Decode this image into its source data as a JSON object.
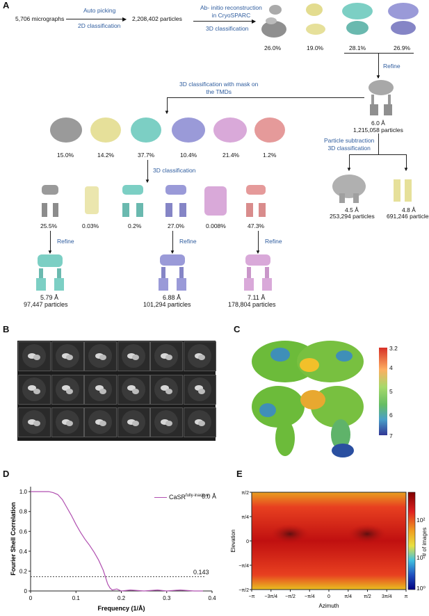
{
  "panels": {
    "a": {
      "label": "A",
      "input": "5,706 micrographs",
      "step1": {
        "top": "Auto picking",
        "bottom": "2D classification"
      },
      "particles": "2,208,402 particles",
      "step2": {
        "top": "Ab- initio reconstruction\nin CryoSPARC",
        "bottom": "3D classification"
      },
      "round1": {
        "percents": [
          "26.0%",
          "19.0%",
          "28.1%",
          "26.9%"
        ],
        "colors": [
          "#9a9a9a",
          "#e6e09a",
          "#7ccfc4",
          "#9a9ad8"
        ]
      },
      "refine": "Refine",
      "map1": {
        "res": "6.0 Å",
        "particles": "1,215,058 particles"
      },
      "mask_step": "3D classification with mask on\nthe TMDs",
      "round2": {
        "percents": [
          "15.0%",
          "14.2%",
          "37.7%",
          "10.4%",
          "21.4%",
          "1.2%"
        ],
        "colors": [
          "#9a9a9a",
          "#e6e09a",
          "#7ccfc4",
          "#9a9ad8",
          "#d9a9d9",
          "#e59a9a"
        ]
      },
      "subtraction": "Particle subtraction\n3D classification",
      "sub_maps": [
        {
          "res": "4.5 Å",
          "particles": "253,294 particles",
          "color": "#b0b0b0"
        },
        {
          "res": "4.8 Å",
          "particles": "691,246 particles",
          "color": "#e6e09a"
        }
      ],
      "class3d": "3D classification",
      "round3": {
        "percents": [
          "25.5%",
          "0.03%",
          "0.2%",
          "27.0%",
          "0.008%",
          "47.3%"
        ],
        "colors": [
          "#9a9a9a",
          "#e6e09a",
          "#7ccfc4",
          "#9a9ad8",
          "#d9a9d9",
          "#e59a9a"
        ]
      },
      "final_refine": "Refine",
      "finals": [
        {
          "res": "5.79 Å",
          "particles": "97,447 particles",
          "color": "#7ccfc4"
        },
        {
          "res": "6.88 Å",
          "particles": "101,294 particles",
          "color": "#9a9ad8"
        },
        {
          "res": "7.11 Å",
          "particles": "178,804 particles",
          "color": "#d9a9d9"
        }
      ]
    },
    "b": {
      "label": "B"
    },
    "c": {
      "label": "C",
      "colorbar_ticks": [
        "3.2",
        "4",
        "5",
        "6",
        "7"
      ]
    },
    "d": {
      "label": "D",
      "legend": "CaSR",
      "legend_sup": "fully-inactive",
      "legend_res": "6.0 Å",
      "threshold_label": "0.143"
    },
    "e": {
      "label": "E",
      "colorbar_title": "# of images",
      "colorbar_ticks": [
        "10²",
        "10¹",
        "10⁰"
      ]
    }
  },
  "chart_data": [
    {
      "type": "line",
      "xlabel": "Frequency (1/Å)",
      "ylabel": "Fourier Shell Correlation",
      "xlim": [
        0,
        0.4
      ],
      "ylim": [
        0,
        1.05
      ],
      "xticks": [
        "0",
        "0.1",
        "0.2",
        "0.3",
        "0.4"
      ],
      "yticks": [
        "0",
        "0.2",
        "0.4",
        "0.6",
        "0.8",
        "1.0"
      ],
      "series": [
        {
          "name": "CaSR fully-inactive",
          "color": "#b04fb0",
          "x": [
            0,
            0.02,
            0.04,
            0.05,
            0.06,
            0.07,
            0.08,
            0.09,
            0.1,
            0.11,
            0.12,
            0.13,
            0.14,
            0.15,
            0.16,
            0.165,
            0.17,
            0.175,
            0.18,
            0.19,
            0.2,
            0.22,
            0.25,
            0.28,
            0.3,
            0.33,
            0.36,
            0.38
          ],
          "y": [
            1.0,
            1.0,
            1.0,
            0.99,
            0.97,
            0.92,
            0.84,
            0.76,
            0.67,
            0.59,
            0.52,
            0.46,
            0.39,
            0.31,
            0.21,
            0.14,
            0.07,
            0.03,
            0.01,
            0.02,
            0.0,
            0.01,
            0.0,
            0.01,
            0.0,
            0.01,
            0.0,
            0.0
          ]
        }
      ],
      "threshold": 0.143
    },
    {
      "type": "heatmap",
      "xlabel": "Azimuth",
      "ylabel": "Elevation",
      "xticks": [
        "−π",
        "−3π/4",
        "−π/2",
        "−π/4",
        "0",
        "π/4",
        "π/2",
        "3π/4",
        "π"
      ],
      "yticks": [
        "π/2",
        "π/4",
        "0",
        "−π/4",
        "−π/2"
      ],
      "colorbar": "log",
      "colorbar_range": [
        "10⁰",
        "10²"
      ]
    }
  ]
}
